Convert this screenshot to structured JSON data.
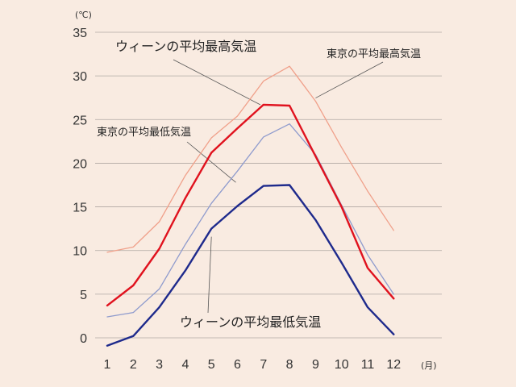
{
  "chart_data": {
    "type": "line",
    "title": "",
    "xlabel": "",
    "ylabel": "",
    "y_unit": "(℃)",
    "x_unit": "(月)",
    "categories": [
      "1",
      "2",
      "3",
      "4",
      "5",
      "6",
      "7",
      "8",
      "9",
      "10",
      "11",
      "12"
    ],
    "ylim": [
      -1,
      35
    ],
    "y_ticks": [
      0,
      5,
      10,
      15,
      20,
      25,
      30,
      35
    ],
    "grid": "horizontal",
    "series": [
      {
        "name": "ウィーンの平均最高気温",
        "color": "#e0121e",
        "values": [
          3.7,
          6.0,
          10.2,
          16.0,
          21.2,
          24.0,
          26.7,
          26.6,
          20.8,
          15.0,
          8.0,
          4.5
        ]
      },
      {
        "name": "東京の平均最高気温",
        "color": "#f0a08a",
        "values": [
          9.8,
          10.4,
          13.3,
          18.6,
          22.9,
          25.4,
          29.4,
          31.1,
          27.1,
          21.8,
          16.8,
          12.3
        ]
      },
      {
        "name": "東京の平均最低気温",
        "color": "#8f9bcd",
        "values": [
          2.4,
          2.9,
          5.6,
          10.7,
          15.4,
          19.1,
          23.0,
          24.5,
          21.0,
          15.2,
          9.5,
          5.0
        ]
      },
      {
        "name": "ウィーンの平均最低気温",
        "color": "#1e2a8c",
        "values": [
          -0.9,
          0.2,
          3.5,
          7.7,
          12.5,
          15.1,
          17.4,
          17.5,
          13.5,
          8.6,
          3.5,
          0.4
        ]
      }
    ],
    "annotations": [
      {
        "text": "ウィーンの平均最高気温",
        "series": 0,
        "point_index": 6
      },
      {
        "text": "東京の平均最高気温",
        "series": 1,
        "point_index": 8
      },
      {
        "text": "東京の平均最低気温",
        "series": 2,
        "point_index": 5
      },
      {
        "text": "ウィーンの平均最低気温",
        "series": 3,
        "point_index": 4
      }
    ]
  },
  "colors": {
    "background": "#f9ebe1",
    "grid": "#b0a8a2",
    "leader": "#555555"
  }
}
